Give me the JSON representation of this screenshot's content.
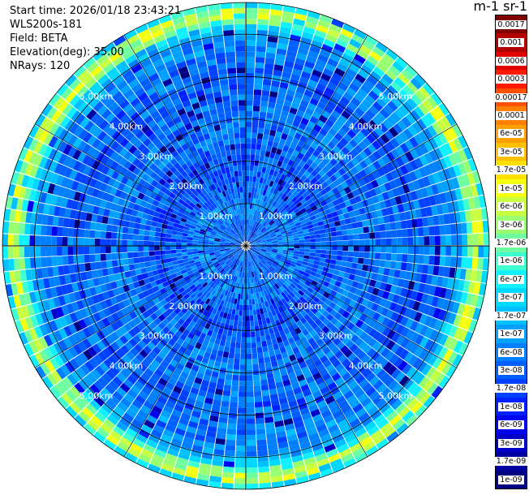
{
  "info": {
    "start_time": "Start time: 2026/01/18 23:43:21",
    "instrument": "WLS200s-181",
    "field": "Field: BETA",
    "elevation": "Elevation(deg): 35.00",
    "nrays": "NRays: 120"
  },
  "colorbar": {
    "title": "m-1 sr-1",
    "labels": [
      "0.0017",
      "0.001",
      "0.0006",
      "0.0003",
      "0.00017",
      "0.0001",
      "6e-05",
      "3e-05",
      "1.7e-05",
      "1e-05",
      "6e-06",
      "3e-06",
      "1.7e-06",
      "1e-06",
      "6e-07",
      "3e-07",
      "1.7e-07",
      "1e-07",
      "6e-08",
      "3e-08",
      "1.7e-08",
      "1e-08",
      "6e-09",
      "3e-09",
      "1.7e-09",
      "1e-09"
    ],
    "colors": [
      "#800000",
      "#b30000",
      "#e00000",
      "#ff1a00",
      "#ff5000",
      "#ff8000",
      "#ffa000",
      "#ffc000",
      "#ffe000",
      "#f5ff10",
      "#c8ff40",
      "#9aff70",
      "#70ffa0",
      "#40ffd0",
      "#10f0ff",
      "#00d8ff",
      "#00c0ff",
      "#00a0ff",
      "#0080ff",
      "#0060ff",
      "#0040ff",
      "#0020ff",
      "#0000f0",
      "#0000c8",
      "#0000a0",
      "#000080"
    ]
  },
  "chart_data": {
    "type": "heatmap",
    "projection": "polar-ppi",
    "field": "BETA",
    "units": "m-1 sr-1",
    "nrays": 120,
    "elevation_deg": 35.0,
    "scale": "log",
    "range_rings_km": [
      1,
      2,
      3,
      4,
      5
    ],
    "ring_labels": [
      "1.00km",
      "2.00km",
      "3.00km",
      "4.00km",
      "5.00km"
    ],
    "max_range_km": 5.75,
    "colorbar_min": "1e-09",
    "colorbar_max": "0.0017",
    "grid": true,
    "range_profile_log10": [
      [
        0.0,
        -7.3
      ],
      [
        0.5,
        -7.4
      ],
      [
        1.0,
        -7.2
      ],
      [
        1.5,
        -7.5
      ],
      [
        2.0,
        -7.6
      ],
      [
        2.5,
        -7.4
      ],
      [
        3.0,
        -7.3
      ],
      [
        3.5,
        -7.35
      ],
      [
        4.0,
        -7.45
      ],
      [
        4.5,
        -7.3
      ],
      [
        5.0,
        -7.0
      ],
      [
        5.2,
        -6.5
      ],
      [
        5.35,
        -5.6
      ],
      [
        5.5,
        -5.2
      ],
      [
        5.62,
        -5.6
      ],
      [
        5.75,
        -7.0
      ]
    ]
  }
}
